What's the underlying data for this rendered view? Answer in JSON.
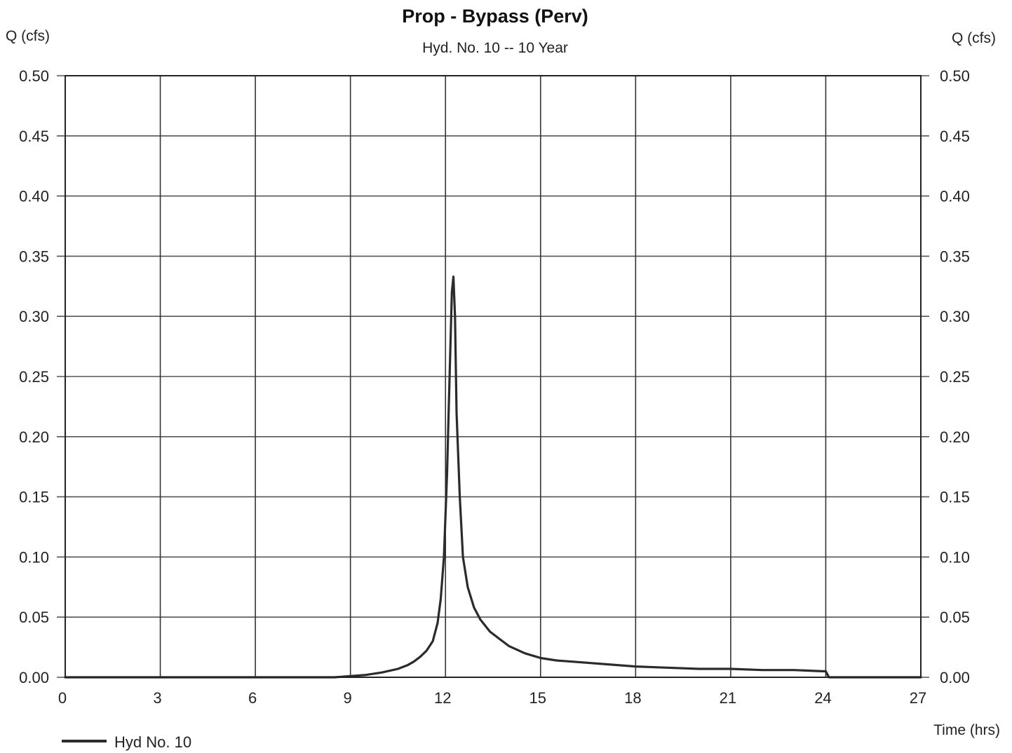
{
  "chart_data": {
    "type": "line",
    "title": "Prop - Bypass (Perv)",
    "subtitle": "Hyd. No. 10 -- 10 Year",
    "ylabel_left": "Q (cfs)",
    "ylabel_right": "Q (cfs)",
    "xlabel": "Time (hrs)",
    "xlim": [
      0,
      27
    ],
    "ylim": [
      0,
      0.5
    ],
    "x_ticks": [
      "0",
      "3",
      "6",
      "9",
      "12",
      "15",
      "18",
      "21",
      "24",
      "27"
    ],
    "y_ticks": [
      "0.00",
      "0.05",
      "0.10",
      "0.15",
      "0.20",
      "0.25",
      "0.30",
      "0.35",
      "0.40",
      "0.45",
      "0.50"
    ],
    "grid": true,
    "legend_position": "bottom-left",
    "series": [
      {
        "name": "Hyd No. 10",
        "color": "#2b2b2b",
        "x": [
          0,
          8.5,
          9.0,
          9.5,
          10.0,
          10.5,
          10.8,
          11.0,
          11.2,
          11.4,
          11.6,
          11.75,
          11.85,
          11.95,
          12.05,
          12.1,
          12.15,
          12.2,
          12.25,
          12.3,
          12.35,
          12.45,
          12.55,
          12.7,
          12.9,
          13.1,
          13.4,
          13.7,
          14.0,
          14.5,
          15.0,
          15.5,
          16.0,
          17.0,
          18.0,
          19.0,
          20.0,
          21.0,
          22.0,
          23.0,
          23.9,
          24.0,
          24.1,
          25.0,
          26.0,
          27.0
        ],
        "y": [
          0.0,
          0.0,
          0.001,
          0.002,
          0.004,
          0.007,
          0.01,
          0.013,
          0.017,
          0.022,
          0.03,
          0.045,
          0.065,
          0.1,
          0.17,
          0.22,
          0.27,
          0.32,
          0.333,
          0.3,
          0.22,
          0.15,
          0.1,
          0.075,
          0.058,
          0.048,
          0.038,
          0.032,
          0.026,
          0.02,
          0.016,
          0.014,
          0.013,
          0.011,
          0.009,
          0.008,
          0.007,
          0.007,
          0.006,
          0.006,
          0.005,
          0.005,
          0.0,
          0.0,
          0.0,
          0.0
        ]
      }
    ]
  }
}
